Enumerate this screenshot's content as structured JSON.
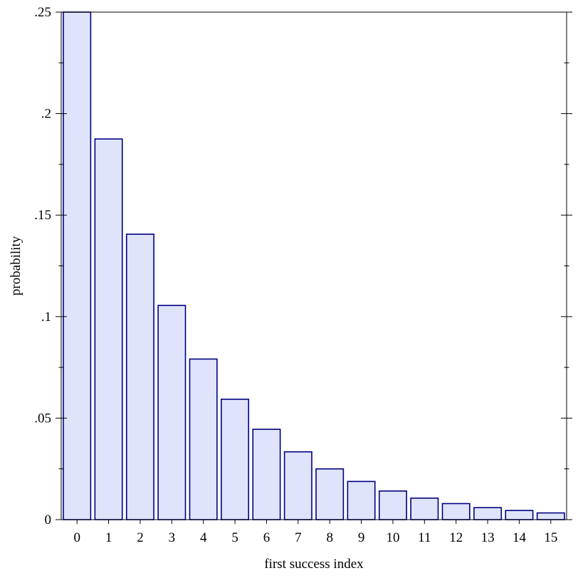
{
  "chart_data": {
    "type": "bar",
    "title": "",
    "xlabel": "first success index",
    "ylabel": "probability",
    "categories": [
      "0",
      "1",
      "2",
      "3",
      "4",
      "5",
      "6",
      "7",
      "8",
      "9",
      "10",
      "11",
      "12",
      "13",
      "14",
      "15"
    ],
    "values": [
      0.25,
      0.1875,
      0.1406,
      0.1055,
      0.0791,
      0.0593,
      0.0445,
      0.0334,
      0.025,
      0.0188,
      0.0141,
      0.0106,
      0.0079,
      0.0059,
      0.0045,
      0.0033
    ],
    "ylim": [
      0,
      0.25
    ],
    "y_ticks": [
      {
        "value": 0,
        "label": "0"
      },
      {
        "value": 0.05,
        "label": ".05"
      },
      {
        "value": 0.1,
        "label": ".1"
      },
      {
        "value": 0.15,
        "label": ".15"
      },
      {
        "value": 0.2,
        "label": ".2"
      },
      {
        "value": 0.25,
        "label": ".25"
      }
    ],
    "y_minor_step": 0.025,
    "grid": false,
    "legend": "none",
    "colors": {
      "bar_fill": "#e0e4fa",
      "bar_stroke": "#000080"
    }
  }
}
